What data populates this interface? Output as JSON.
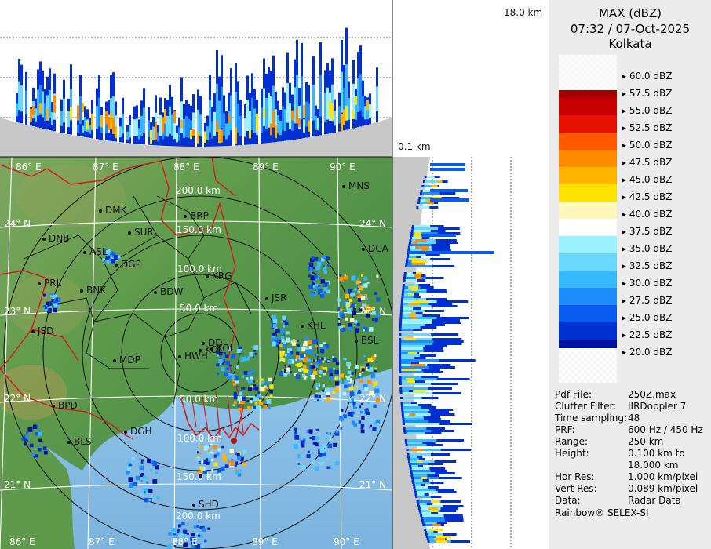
{
  "header": {
    "product": "MAX (dBZ)",
    "datetime": "07:32 / 07-Oct-2025",
    "station": "Kolkata"
  },
  "height_labels": {
    "top": "18.0 km",
    "bottom": "0.1 km"
  },
  "map": {
    "lon_labels": [
      "86° E",
      "87° E",
      "88° E",
      "89° E",
      "90° E"
    ],
    "lat_labels": [
      "24° N",
      "23° N",
      "22° N",
      "21° N"
    ],
    "range_labels": [
      "50.0 km",
      "100.0 km",
      "150.0 km",
      "200.0 km"
    ],
    "places": [
      "MNS",
      "DMK",
      "BRP",
      "DNB",
      "SUR",
      "DCA",
      "ASL",
      "DGP",
      "KRG",
      "PRL",
      "BNK",
      "BDW",
      "JSR",
      "KHL",
      "JSD",
      "BSL",
      "MDP",
      "DD",
      "HWH",
      "KOL",
      "BPD",
      "DGH",
      "BLS",
      "SHD",
      "KOL"
    ]
  },
  "colorbar": [
    {
      "label": "60.0 dBZ",
      "color": ""
    },
    {
      "label": "57.5 dBZ",
      "color": "#a40000"
    },
    {
      "label": "55.0 dBZ",
      "color": "#c80000"
    },
    {
      "label": "52.5 dBZ",
      "color": "#e81000"
    },
    {
      "label": "50.0 dBZ",
      "color": "#ff5a00"
    },
    {
      "label": "47.5 dBZ",
      "color": "#ff8c00"
    },
    {
      "label": "45.0 dBZ",
      "color": "#ffb400"
    },
    {
      "label": "42.5 dBZ",
      "color": "#ffe400"
    },
    {
      "label": "40.0 dBZ",
      "color": "#fff8bc"
    },
    {
      "label": "37.5 dBZ",
      "color": "#ffffff"
    },
    {
      "label": "35.0 dBZ",
      "color": "#9ef2ff"
    },
    {
      "label": "32.5 dBZ",
      "color": "#6ad8ff"
    },
    {
      "label": "30.0 dBZ",
      "color": "#38b8ff"
    },
    {
      "label": "27.5 dBZ",
      "color": "#1e8cff"
    },
    {
      "label": "25.0 dBZ",
      "color": "#0a5cf0"
    },
    {
      "label": "22.5 dBZ",
      "color": "#0030d2"
    },
    {
      "label": "20.0 dBZ",
      "color": "#0014a0"
    }
  ],
  "info": [
    {
      "key": "Pdf File:",
      "value": "250Z.max"
    },
    {
      "key": "Clutter Filter:",
      "value": "IIRDoppler 7"
    },
    {
      "key": "Time sampling:",
      "value": "48"
    },
    {
      "key": "PRF:",
      "value": "600 Hz / 450 Hz"
    },
    {
      "key": "Range:",
      "value": "250 km"
    },
    {
      "key": "Height:",
      "value": "0.100 km to"
    },
    {
      "key": "",
      "value": "18.000 km"
    },
    {
      "key": "Hor Res:",
      "value": "1.000 km/pixel"
    },
    {
      "key": "Vert Res:",
      "value": "0.089 km/pixel"
    },
    {
      "key": "Data:",
      "value": "Radar Data"
    }
  ],
  "footer": "Rainbow® SELEX-SI"
}
